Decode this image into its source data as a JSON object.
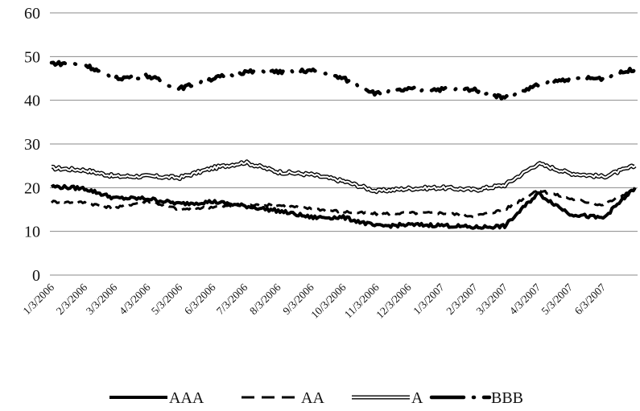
{
  "chart_data": {
    "type": "line",
    "title": "",
    "xlabel": "",
    "ylabel": "",
    "ylim": [
      0,
      60
    ],
    "yticks": [
      0,
      10,
      20,
      30,
      40,
      50,
      60
    ],
    "x_tick_labels": [
      "1/3/2006",
      "2/3/2006",
      "3/3/2006",
      "4/3/2006",
      "5/3/2006",
      "6/3/2006",
      "7/3/2006",
      "8/3/2006",
      "9/3/2006",
      "10/3/2006",
      "11/3/2006",
      "12/3/2006",
      "1/3/2007",
      "2/3/2007",
      "3/3/2007",
      "4/3/2007",
      "5/3/2007",
      "6/3/2007"
    ],
    "grid": "horizontal",
    "legend_position": "bottom",
    "x_dates": [
      "2006-01-03",
      "2006-02-03",
      "2006-03-03",
      "2006-04-03",
      "2006-05-03",
      "2006-06-03",
      "2006-07-03",
      "2006-08-03",
      "2006-09-03",
      "2006-10-03",
      "2006-11-03",
      "2006-12-03",
      "2007-01-03",
      "2007-02-03",
      "2007-03-03",
      "2007-04-03",
      "2007-05-03",
      "2007-06-03",
      "2007-07-03"
    ],
    "series": [
      {
        "name": "AAA",
        "style": "solid-thick",
        "color": "#000000",
        "values": [
          20.3,
          19.8,
          17.6,
          17.5,
          16.3,
          16.8,
          15.8,
          14.7,
          13.2,
          13.2,
          11.2,
          11.5,
          11.4,
          10.9,
          11.2,
          18.7,
          14.0,
          13.0,
          20.0
        ]
      },
      {
        "name": "AA",
        "style": "dashed",
        "color": "#000000",
        "values": [
          16.8,
          16.6,
          15.3,
          17.0,
          15.0,
          15.6,
          16.0,
          16.0,
          15.2,
          14.5,
          14.0,
          14.2,
          14.2,
          13.5,
          15.0,
          19.5,
          17.5,
          16.0,
          19.8
        ]
      },
      {
        "name": "A",
        "style": "double-line",
        "color": "#000000",
        "values": [
          24.5,
          24.0,
          22.6,
          22.6,
          22.3,
          24.5,
          25.8,
          23.6,
          23.0,
          21.5,
          19.2,
          19.8,
          20.0,
          19.5,
          20.6,
          25.5,
          23.3,
          22.5,
          25.0
        ]
      },
      {
        "name": "BBB",
        "style": "dash-dot-thick",
        "color": "#000000",
        "values": [
          48.5,
          48.2,
          45.0,
          45.6,
          42.7,
          45.0,
          46.5,
          46.5,
          46.8,
          45.0,
          41.5,
          42.5,
          42.5,
          42.5,
          40.5,
          43.5,
          45.0,
          45.0,
          47.2
        ]
      }
    ]
  }
}
